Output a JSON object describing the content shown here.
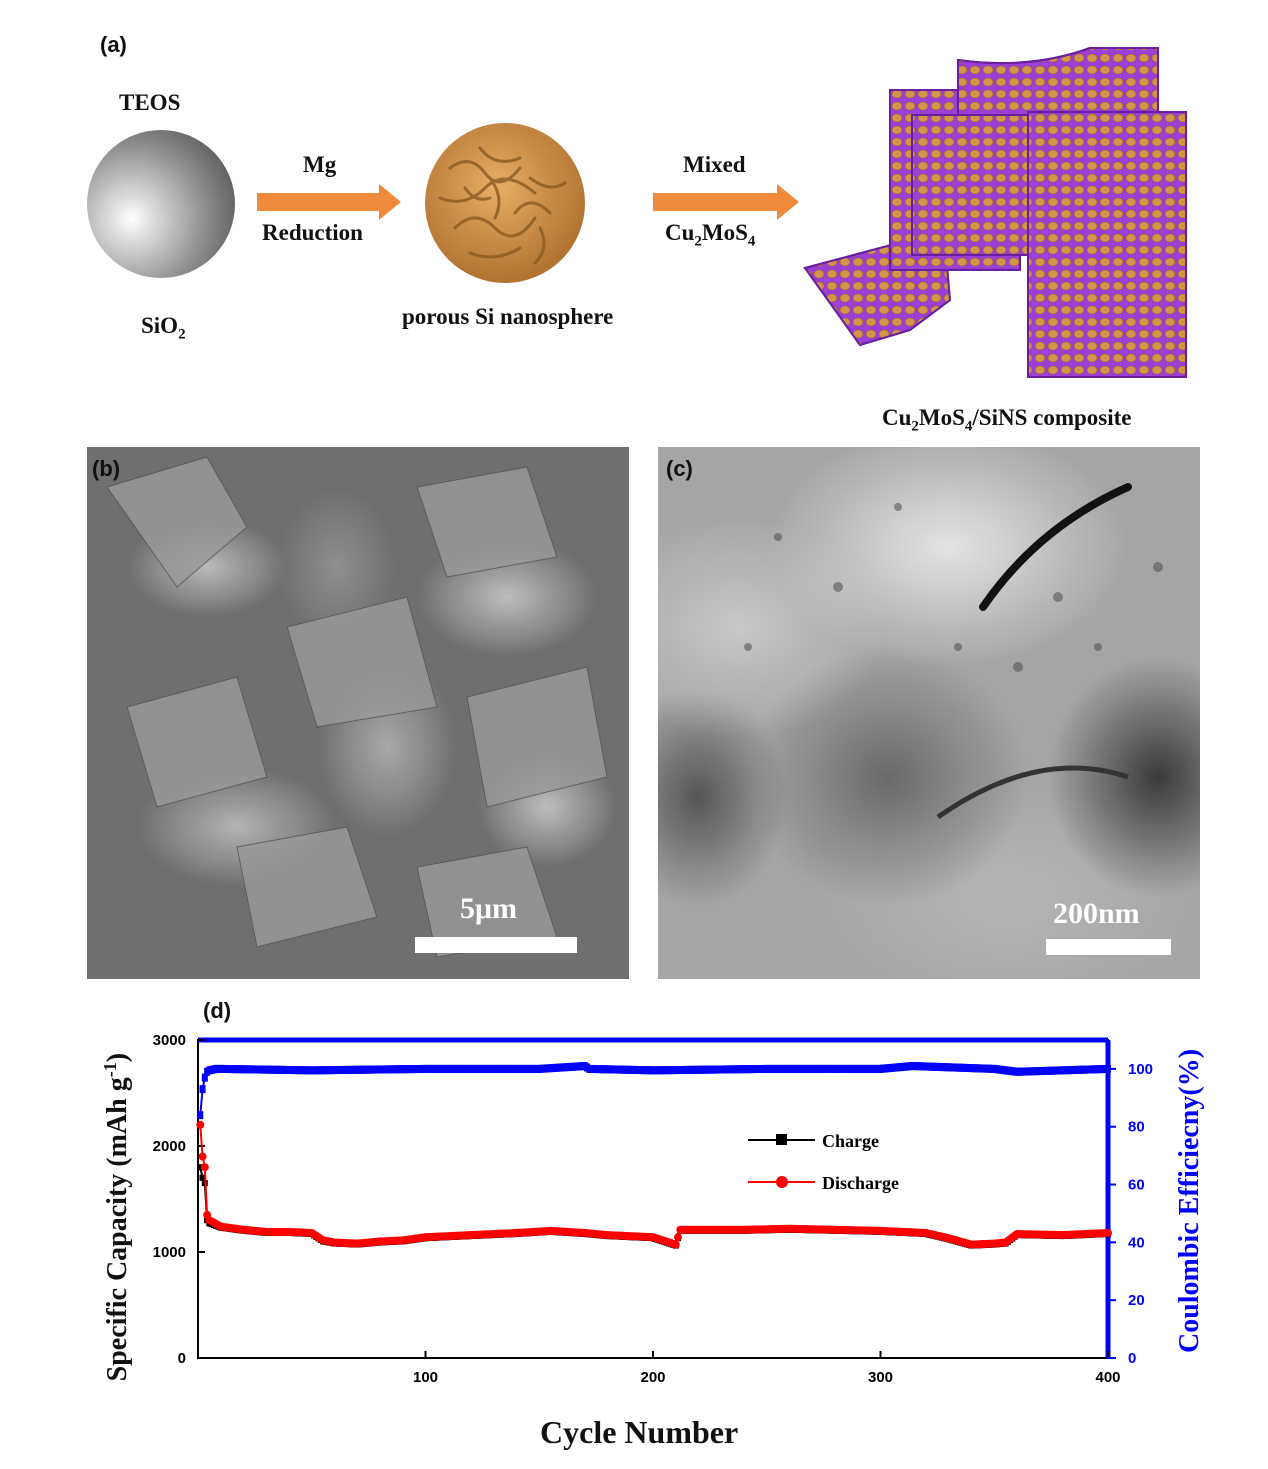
{
  "panels": {
    "a": "(a)",
    "b": "(b)",
    "c": "(c)",
    "d": "(d)"
  },
  "schematic": {
    "teos": "TEOS",
    "sio2": "SiO",
    "sio2_sub": "2",
    "arrow1_top": "Mg",
    "arrow1_bottom": "Reduction",
    "nanosphere": "porous Si nanosphere",
    "arrow2_top": "Mixed",
    "arrow2_bottom_a": "Cu",
    "arrow2_bottom_sub1": "2",
    "arrow2_bottom_b": "MoS",
    "arrow2_bottom_sub2": "4",
    "composite_a": "Cu",
    "composite_sub1": "2",
    "composite_b": "MoS",
    "composite_sub2": "4",
    "composite_c": "/SiNS composite",
    "colors": {
      "arrow": "#ee8a3a",
      "particle": "#d4954a",
      "matrix": "#9b3fd6"
    }
  },
  "sem": {
    "scale_label": "5μm"
  },
  "tem": {
    "scale_label": "200nm"
  },
  "chart_data": {
    "type": "line",
    "xlabel": "Cycle Number",
    "ylabel": "Specific Capacity (mAh g",
    "ylabel_sup": "-1",
    "ylabel_end": ")",
    "y2label": "Coulombic Efficiecny(%)",
    "xlim": [
      0,
      400
    ],
    "ylim": [
      0,
      3000
    ],
    "y2lim": [
      0,
      110
    ],
    "x_ticks": [
      100,
      200,
      300,
      400
    ],
    "y_ticks": [
      0,
      1000,
      2000,
      3000
    ],
    "y2_ticks": [
      0,
      20,
      40,
      60,
      80,
      100
    ],
    "legend": {
      "position": "center-right",
      "charge": "Charge",
      "discharge": "Discharge"
    },
    "colors": {
      "charge": "#000000",
      "discharge": "#ff0000",
      "ce": "#0000ff"
    },
    "series": [
      {
        "name": "Charge",
        "x": [
          1,
          2,
          3,
          4,
          5,
          10,
          20,
          30,
          40,
          50,
          55,
          60,
          70,
          80,
          90,
          100,
          120,
          140,
          155,
          170,
          180,
          190,
          200,
          210,
          212,
          220,
          240,
          260,
          280,
          300,
          320,
          330,
          340,
          350,
          355,
          360,
          380,
          400
        ],
        "y": [
          1800,
          1700,
          1650,
          1300,
          1270,
          1230,
          1200,
          1180,
          1180,
          1170,
          1100,
          1080,
          1070,
          1090,
          1100,
          1130,
          1150,
          1170,
          1190,
          1170,
          1150,
          1140,
          1130,
          1060,
          1200,
          1200,
          1200,
          1210,
          1200,
          1190,
          1170,
          1120,
          1060,
          1070,
          1080,
          1160,
          1150,
          1170
        ]
      },
      {
        "name": "Discharge",
        "x": [
          1,
          2,
          3,
          4,
          5,
          10,
          20,
          30,
          40,
          50,
          55,
          60,
          70,
          80,
          90,
          100,
          120,
          140,
          155,
          170,
          180,
          190,
          200,
          210,
          212,
          220,
          240,
          260,
          280,
          300,
          320,
          330,
          340,
          350,
          355,
          360,
          380,
          400
        ],
        "y": [
          2200,
          1900,
          1800,
          1350,
          1300,
          1240,
          1210,
          1190,
          1190,
          1180,
          1110,
          1090,
          1080,
          1100,
          1110,
          1140,
          1160,
          1180,
          1200,
          1180,
          1160,
          1150,
          1140,
          1070,
          1210,
          1210,
          1210,
          1220,
          1210,
          1200,
          1180,
          1130,
          1070,
          1080,
          1090,
          1170,
          1160,
          1180
        ]
      },
      {
        "name": "Coulombic Efficiency",
        "axis": "right",
        "x": [
          1,
          2,
          3,
          4,
          5,
          8,
          10,
          50,
          100,
          150,
          170,
          172,
          200,
          250,
          300,
          314,
          350,
          360,
          400
        ],
        "y": [
          84,
          93,
          97,
          99,
          99.5,
          100,
          100,
          99.5,
          100,
          100,
          101,
          100,
          99.5,
          100,
          100,
          101,
          100,
          99,
          100
        ]
      }
    ]
  }
}
